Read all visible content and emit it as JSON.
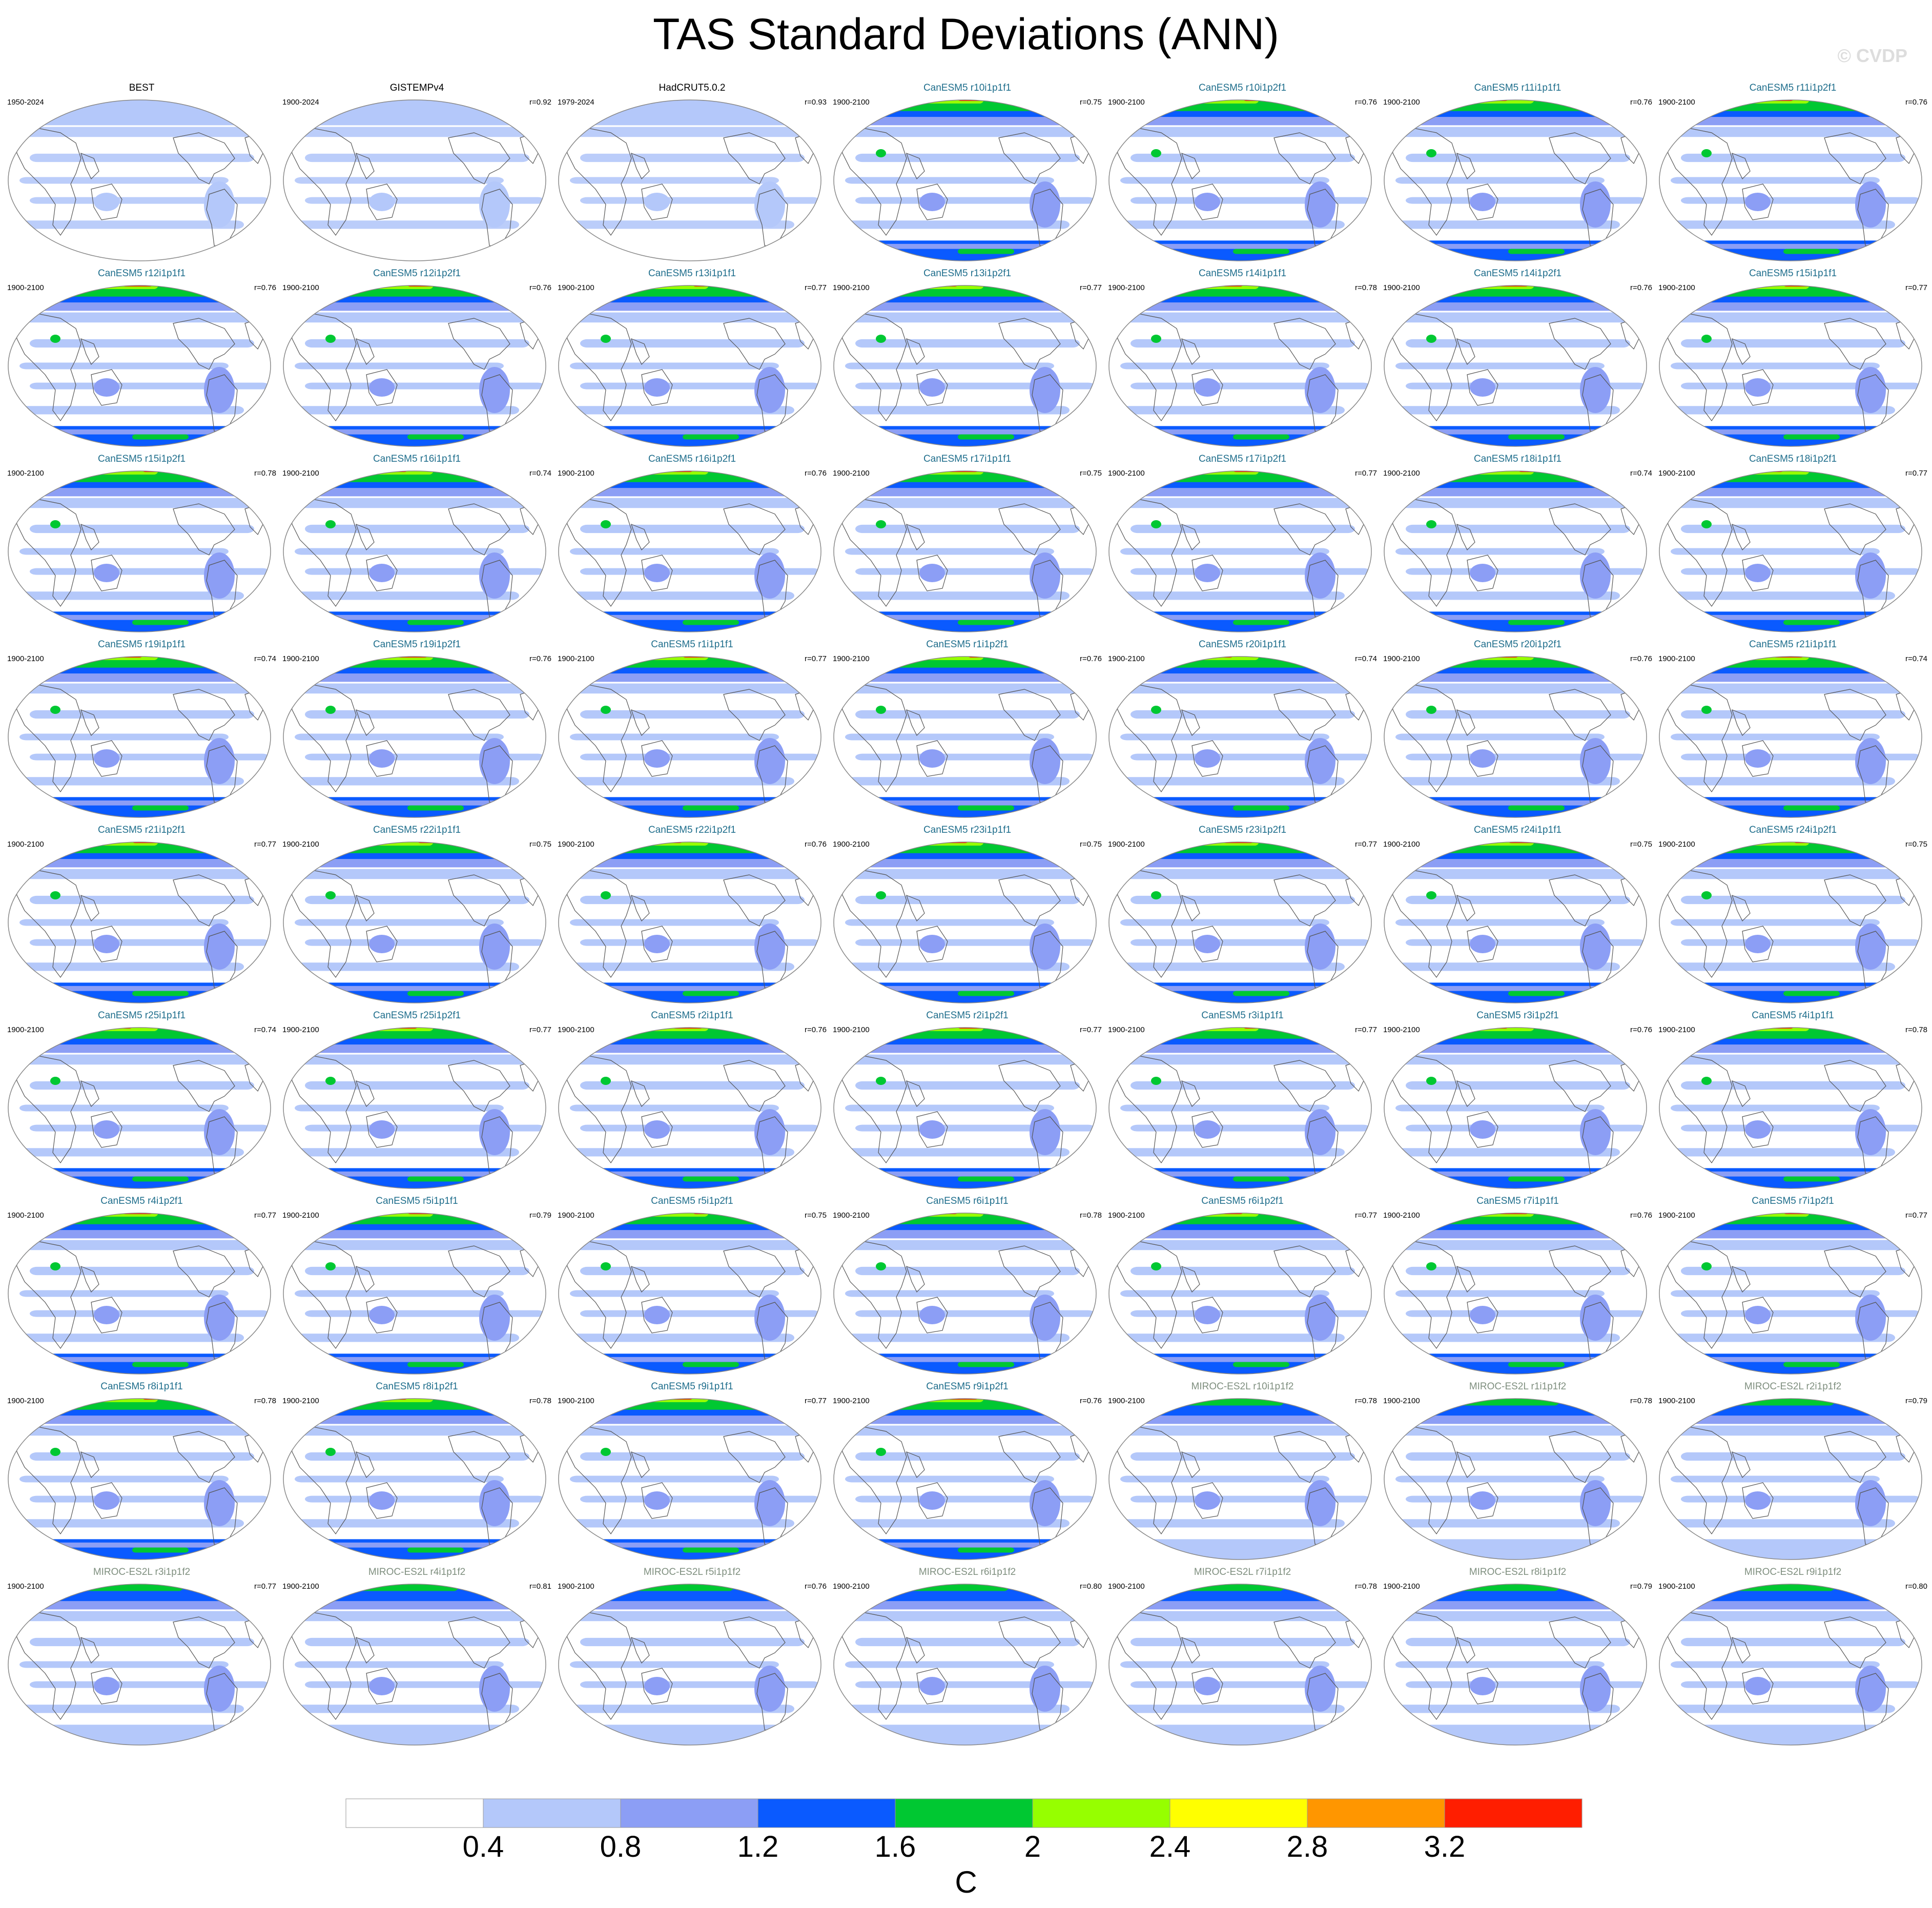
{
  "title": "TAS Standard Deviations (ANN)",
  "watermark": "© CVDP",
  "colors": {
    "levels": [
      "#ffffff",
      "#b4c8fa",
      "#8c9ef5",
      "#0a5aff",
      "#00c832",
      "#96ff00",
      "#ffff00",
      "#ff9600",
      "#ff1e00"
    ],
    "coast": "#555555",
    "border": "#888888"
  },
  "chart_data": {
    "type": "heatmap",
    "projection": "Robinson (global)",
    "variable": "TAS standard deviation, annual",
    "units": "C",
    "contour_levels": [
      0.4,
      0.8,
      1.2,
      1.6,
      2,
      2.4,
      2.8,
      3.2
    ],
    "colorbar": {
      "tick_labels": [
        "0.4",
        "0.8",
        "1.2",
        "1.6",
        "2",
        "2.4",
        "2.8",
        "3.2"
      ],
      "unit": "C"
    },
    "panels": [
      {
        "name": "BEST",
        "period": "1950-2024",
        "r": "",
        "group": "obs"
      },
      {
        "name": "GISTEMPv4",
        "period": "1900-2024",
        "r": "r=0.92",
        "group": "obs"
      },
      {
        "name": "HadCRUT5.0.2",
        "period": "1979-2024",
        "r": "r=0.93",
        "group": "obs"
      },
      {
        "name": "CanESM5 r10i1p1f1",
        "period": "1900-2100",
        "r": "r=0.75",
        "group": "can"
      },
      {
        "name": "CanESM5 r10i1p2f1",
        "period": "1900-2100",
        "r": "r=0.76",
        "group": "can"
      },
      {
        "name": "CanESM5 r11i1p1f1",
        "period": "1900-2100",
        "r": "r=0.76",
        "group": "can"
      },
      {
        "name": "CanESM5 r11i1p2f1",
        "period": "1900-2100",
        "r": "r=0.76",
        "group": "can"
      },
      {
        "name": "CanESM5 r12i1p1f1",
        "period": "1900-2100",
        "r": "r=0.76",
        "group": "can"
      },
      {
        "name": "CanESM5 r12i1p2f1",
        "period": "1900-2100",
        "r": "r=0.76",
        "group": "can"
      },
      {
        "name": "CanESM5 r13i1p1f1",
        "period": "1900-2100",
        "r": "r=0.77",
        "group": "can"
      },
      {
        "name": "CanESM5 r13i1p2f1",
        "period": "1900-2100",
        "r": "r=0.77",
        "group": "can"
      },
      {
        "name": "CanESM5 r14i1p1f1",
        "period": "1900-2100",
        "r": "r=0.78",
        "group": "can"
      },
      {
        "name": "CanESM5 r14i1p2f1",
        "period": "1900-2100",
        "r": "r=0.76",
        "group": "can"
      },
      {
        "name": "CanESM5 r15i1p1f1",
        "period": "1900-2100",
        "r": "r=0.77",
        "group": "can"
      },
      {
        "name": "CanESM5 r15i1p2f1",
        "period": "1900-2100",
        "r": "r=0.78",
        "group": "can"
      },
      {
        "name": "CanESM5 r16i1p1f1",
        "period": "1900-2100",
        "r": "r=0.74",
        "group": "can"
      },
      {
        "name": "CanESM5 r16i1p2f1",
        "period": "1900-2100",
        "r": "r=0.76",
        "group": "can"
      },
      {
        "name": "CanESM5 r17i1p1f1",
        "period": "1900-2100",
        "r": "r=0.75",
        "group": "can"
      },
      {
        "name": "CanESM5 r17i1p2f1",
        "period": "1900-2100",
        "r": "r=0.77",
        "group": "can"
      },
      {
        "name": "CanESM5 r18i1p1f1",
        "period": "1900-2100",
        "r": "r=0.74",
        "group": "can"
      },
      {
        "name": "CanESM5 r18i1p2f1",
        "period": "1900-2100",
        "r": "r=0.77",
        "group": "can"
      },
      {
        "name": "CanESM5 r19i1p1f1",
        "period": "1900-2100",
        "r": "r=0.74",
        "group": "can"
      },
      {
        "name": "CanESM5 r19i1p2f1",
        "period": "1900-2100",
        "r": "r=0.76",
        "group": "can"
      },
      {
        "name": "CanESM5 r1i1p1f1",
        "period": "1900-2100",
        "r": "r=0.77",
        "group": "can"
      },
      {
        "name": "CanESM5 r1i1p2f1",
        "period": "1900-2100",
        "r": "r=0.76",
        "group": "can"
      },
      {
        "name": "CanESM5 r20i1p1f1",
        "period": "1900-2100",
        "r": "r=0.74",
        "group": "can"
      },
      {
        "name": "CanESM5 r20i1p2f1",
        "period": "1900-2100",
        "r": "r=0.76",
        "group": "can"
      },
      {
        "name": "CanESM5 r21i1p1f1",
        "period": "1900-2100",
        "r": "r=0.74",
        "group": "can"
      },
      {
        "name": "CanESM5 r21i1p2f1",
        "period": "1900-2100",
        "r": "r=0.77",
        "group": "can"
      },
      {
        "name": "CanESM5 r22i1p1f1",
        "period": "1900-2100",
        "r": "r=0.75",
        "group": "can"
      },
      {
        "name": "CanESM5 r22i1p2f1",
        "period": "1900-2100",
        "r": "r=0.76",
        "group": "can"
      },
      {
        "name": "CanESM5 r23i1p1f1",
        "period": "1900-2100",
        "r": "r=0.75",
        "group": "can"
      },
      {
        "name": "CanESM5 r23i1p2f1",
        "period": "1900-2100",
        "r": "r=0.77",
        "group": "can"
      },
      {
        "name": "CanESM5 r24i1p1f1",
        "period": "1900-2100",
        "r": "r=0.75",
        "group": "can"
      },
      {
        "name": "CanESM5 r24i1p2f1",
        "period": "1900-2100",
        "r": "r=0.75",
        "group": "can"
      },
      {
        "name": "CanESM5 r25i1p1f1",
        "period": "1900-2100",
        "r": "r=0.74",
        "group": "can"
      },
      {
        "name": "CanESM5 r25i1p2f1",
        "period": "1900-2100",
        "r": "r=0.77",
        "group": "can"
      },
      {
        "name": "CanESM5 r2i1p1f1",
        "period": "1900-2100",
        "r": "r=0.76",
        "group": "can"
      },
      {
        "name": "CanESM5 r2i1p2f1",
        "period": "1900-2100",
        "r": "r=0.77",
        "group": "can"
      },
      {
        "name": "CanESM5 r3i1p1f1",
        "period": "1900-2100",
        "r": "r=0.77",
        "group": "can"
      },
      {
        "name": "CanESM5 r3i1p2f1",
        "period": "1900-2100",
        "r": "r=0.76",
        "group": "can"
      },
      {
        "name": "CanESM5 r4i1p1f1",
        "period": "1900-2100",
        "r": "r=0.78",
        "group": "can"
      },
      {
        "name": "CanESM5 r4i1p2f1",
        "period": "1900-2100",
        "r": "r=0.77",
        "group": "can"
      },
      {
        "name": "CanESM5 r5i1p1f1",
        "period": "1900-2100",
        "r": "r=0.79",
        "group": "can"
      },
      {
        "name": "CanESM5 r5i1p2f1",
        "period": "1900-2100",
        "r": "r=0.75",
        "group": "can"
      },
      {
        "name": "CanESM5 r6i1p1f1",
        "period": "1900-2100",
        "r": "r=0.78",
        "group": "can"
      },
      {
        "name": "CanESM5 r6i1p2f1",
        "period": "1900-2100",
        "r": "r=0.77",
        "group": "can"
      },
      {
        "name": "CanESM5 r7i1p1f1",
        "period": "1900-2100",
        "r": "r=0.76",
        "group": "can"
      },
      {
        "name": "CanESM5 r7i1p2f1",
        "period": "1900-2100",
        "r": "r=0.77",
        "group": "can"
      },
      {
        "name": "CanESM5 r8i1p1f1",
        "period": "1900-2100",
        "r": "r=0.78",
        "group": "can"
      },
      {
        "name": "CanESM5 r8i1p2f1",
        "period": "1900-2100",
        "r": "r=0.78",
        "group": "can"
      },
      {
        "name": "CanESM5 r9i1p1f1",
        "period": "1900-2100",
        "r": "r=0.77",
        "group": "can"
      },
      {
        "name": "CanESM5 r9i1p2f1",
        "period": "1900-2100",
        "r": "r=0.76",
        "group": "can"
      },
      {
        "name": "MIROC-ES2L r10i1p1f2",
        "period": "1900-2100",
        "r": "r=0.78",
        "group": "miroc"
      },
      {
        "name": "MIROC-ES2L r1i1p1f2",
        "period": "1900-2100",
        "r": "r=0.78",
        "group": "miroc"
      },
      {
        "name": "MIROC-ES2L r2i1p1f2",
        "period": "1900-2100",
        "r": "r=0.79",
        "group": "miroc"
      },
      {
        "name": "MIROC-ES2L r3i1p1f2",
        "period": "1900-2100",
        "r": "r=0.77",
        "group": "miroc"
      },
      {
        "name": "MIROC-ES2L r4i1p1f2",
        "period": "1900-2100",
        "r": "r=0.81",
        "group": "miroc"
      },
      {
        "name": "MIROC-ES2L r5i1p1f2",
        "period": "1900-2100",
        "r": "r=0.76",
        "group": "miroc"
      },
      {
        "name": "MIROC-ES2L r6i1p1f2",
        "period": "1900-2100",
        "r": "r=0.80",
        "group": "miroc"
      },
      {
        "name": "MIROC-ES2L r7i1p1f2",
        "period": "1900-2100",
        "r": "r=0.78",
        "group": "miroc"
      },
      {
        "name": "MIROC-ES2L r8i1p1f2",
        "period": "1900-2100",
        "r": "r=0.79",
        "group": "miroc"
      },
      {
        "name": "MIROC-ES2L r9i1p1f2",
        "period": "1900-2100",
        "r": "r=0.80",
        "group": "miroc"
      }
    ]
  }
}
